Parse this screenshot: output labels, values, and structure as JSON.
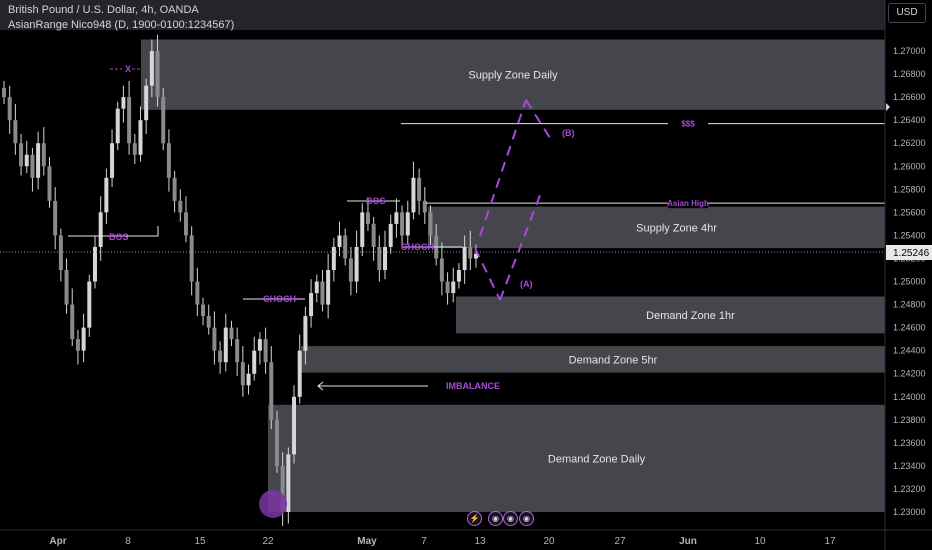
{
  "legend": {
    "symbol_line": "British Pound / U.S. Dollar, 4h, OANDA",
    "indicator_line": "AsianRange Nico948 (D, 1900-0100:1234567)"
  },
  "currency": "USD",
  "colors": {
    "background": "#000000",
    "zone_fill": "#4a4c53",
    "zone_text": "#e6e6e6",
    "annotation": "#a64ad8",
    "candle": "#d6d6d6",
    "axis_text": "#b2b5be",
    "last_price_tag": "#e8e8e8"
  },
  "chart_data": {
    "type": "candlestick",
    "y_axis": {
      "min": 1.229,
      "max": 1.274,
      "ticks": [
        "1.27000",
        "1.26800",
        "1.26600",
        "1.26400",
        "1.26200",
        "1.26000",
        "1.25800",
        "1.25600",
        "1.25400",
        "1.25200",
        "1.25000",
        "1.24800",
        "1.24600",
        "1.24400",
        "1.24200",
        "1.24000",
        "1.23800",
        "1.23600",
        "1.23400",
        "1.23200",
        "1.23000"
      ]
    },
    "x_axis": {
      "labels": [
        "Apr",
        "8",
        "15",
        "22",
        "May",
        "7",
        "13",
        "20",
        "27",
        "Jun",
        "10",
        "17"
      ]
    },
    "last_price": "1.25246",
    "series": [
      {
        "values": [
          1.266,
          1.264,
          1.262,
          1.26,
          1.261,
          1.259,
          1.262,
          1.26,
          1.257,
          1.254,
          1.251,
          1.248,
          1.245,
          1.244,
          1.246,
          1.25,
          1.253,
          1.256,
          1.259,
          1.262,
          1.265,
          1.266,
          1.262,
          1.261,
          1.264,
          1.267,
          1.27,
          1.266,
          1.262,
          1.259,
          1.257,
          1.256,
          1.254,
          1.25,
          1.248,
          1.247,
          1.246,
          1.244,
          1.243,
          1.246,
          1.245,
          1.243,
          1.241,
          1.242,
          1.244,
          1.245,
          1.243,
          1.238,
          1.234,
          1.23,
          1.235,
          1.24,
          1.244,
          1.247,
          1.249,
          1.25,
          1.248,
          1.251,
          1.253,
          1.254,
          1.252,
          1.25,
          1.253,
          1.256,
          1.255,
          1.253,
          1.251,
          1.253,
          1.255,
          1.256,
          1.254,
          1.256,
          1.259,
          1.257,
          1.256,
          1.254,
          1.252,
          1.25,
          1.249,
          1.25,
          1.251,
          1.253,
          1.252,
          1.2524
        ]
      }
    ],
    "zones": [
      {
        "label": "Supply Zone Daily",
        "from": 1.2649,
        "to": 1.271
      },
      {
        "label": "Supply Zone 4hr",
        "from": 1.2529,
        "to": 1.2565
      },
      {
        "label": "Demand Zone 1hr",
        "from": 1.2455,
        "to": 1.2487
      },
      {
        "label": "Demand Zone 5hr",
        "from": 1.2421,
        "to": 1.2444
      },
      {
        "label": "Demand Zone Daily",
        "from": 1.23,
        "to": 1.2393
      }
    ],
    "levels": [
      {
        "label": "$$$",
        "price": 1.2637
      },
      {
        "label": "Asian High",
        "price": 1.2568
      }
    ],
    "annotations": [
      "BOS",
      "BOS",
      "CHOCH",
      "CHOCH",
      "X",
      "IMBALANCE",
      "(A)",
      "(B)"
    ]
  }
}
